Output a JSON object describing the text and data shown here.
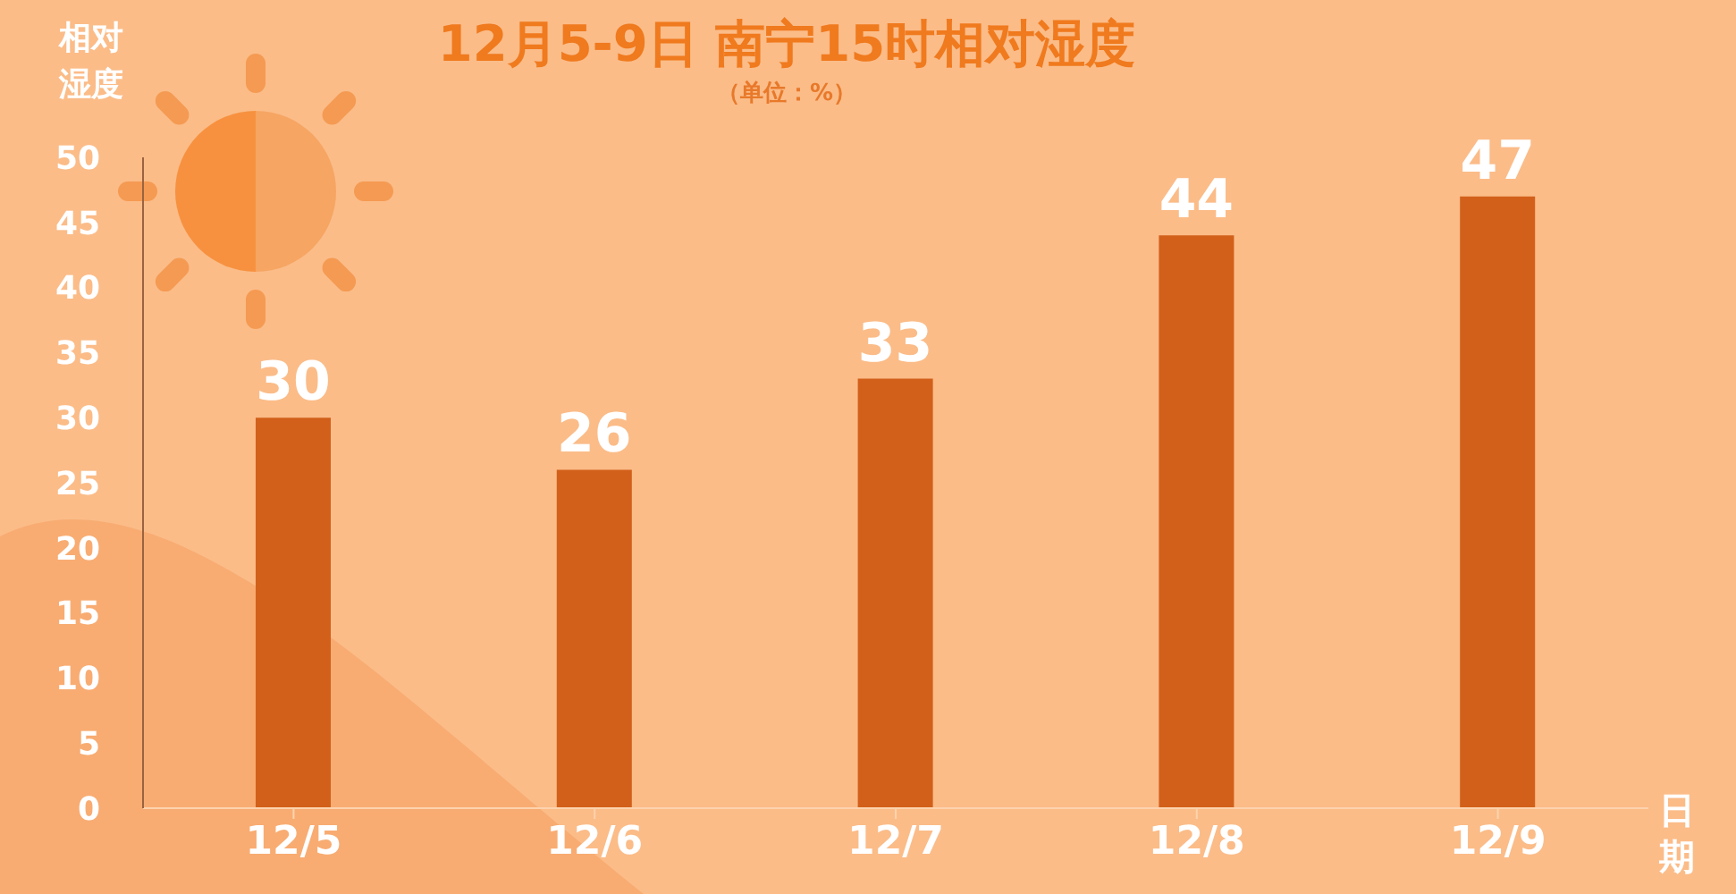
{
  "chart_data": {
    "type": "bar",
    "title": "12月5-9日 南宁15时相对湿度",
    "subtitle": "（单位：%）",
    "ylabel": "相对湿度",
    "xlabel": "日期",
    "categories": [
      "12/5",
      "12/6",
      "12/7",
      "12/8",
      "12/9"
    ],
    "values": [
      30,
      26,
      33,
      44,
      47
    ],
    "color": "#d2601a",
    "ylim": [
      0,
      50
    ],
    "yticks": [
      0,
      5,
      10,
      15,
      20,
      25,
      30,
      35,
      40,
      45,
      50
    ],
    "data_labels": true
  }
}
